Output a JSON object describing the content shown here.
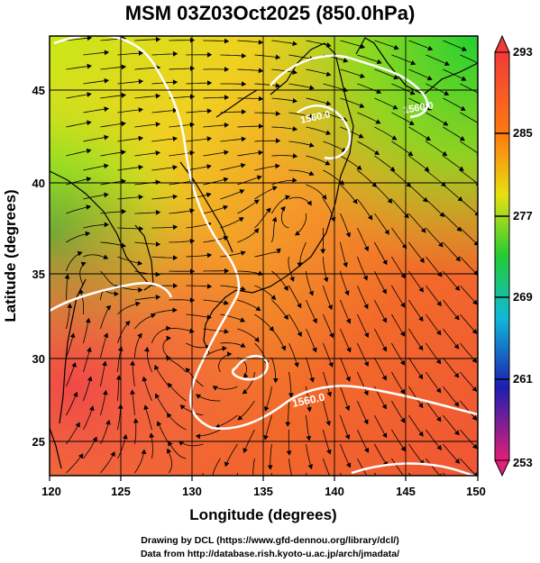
{
  "title": "MSM 03Z03Oct2025 (850.0hPa)",
  "x_axis": {
    "label": "Longitude (degrees)",
    "ticks": [
      "120",
      "125",
      "130",
      "135",
      "140",
      "145",
      "150"
    ],
    "range": [
      120,
      150
    ]
  },
  "y_axis": {
    "label": "Latitude  (degrees)",
    "ticks": [
      "25",
      "30",
      "35",
      "40",
      "45"
    ],
    "range": [
      22.4,
      47.6
    ]
  },
  "colorbar": {
    "labels": [
      "293",
      "285",
      "277",
      "269",
      "261",
      "253"
    ],
    "range": [
      253,
      293
    ],
    "colors": [
      "#e21f78",
      "#1c1fb0",
      "#10b9d8",
      "#22cc33",
      "#e8e010",
      "#ff7a10",
      "#f23a3a"
    ]
  },
  "contour_labels": [
    "1560.0",
    "1560.0",
    "1560.0"
  ],
  "credits": [
    "Drawing by DCL (https://www.gfd-dennou.org/library/dcl/)",
    "Data from http://database.rish.kyoto-u.ac.jp/arch/jmadata/"
  ]
}
